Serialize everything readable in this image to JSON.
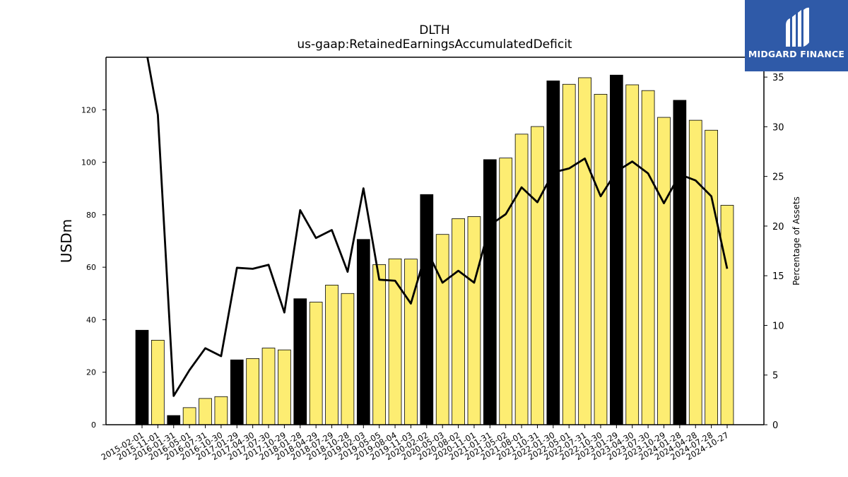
{
  "chart_data": {
    "type": "bar+line",
    "title": "DLTH",
    "subtitle": "us-gaap:RetainedEarningsAccumulatedDeficit",
    "ylabel": "USDm",
    "y2label": "Percentage of Assets",
    "ylim": [
      0,
      140
    ],
    "y2lim": [
      0,
      37
    ],
    "yticks": [
      0,
      20,
      40,
      60,
      80,
      100,
      120
    ],
    "y2ticks": [
      0,
      5,
      10,
      15,
      20,
      25,
      30,
      35
    ],
    "categories": [
      "2015-02-01",
      "2015-11-01",
      "2016-01-31",
      "2016-05-01",
      "2016-07-31",
      "2016-10-30",
      "2017-01-29",
      "2017-04-30",
      "2017-07-30",
      "2017-10-29",
      "2018-01-28",
      "2018-04-29",
      "2018-07-29",
      "2018-10-28",
      "2019-02-03",
      "2019-05-05",
      "2019-08-04",
      "2019-11-03",
      "2020-02-02",
      "2020-05-03",
      "2020-08-02",
      "2020-11-01",
      "2021-01-31",
      "2021-05-02",
      "2021-08-01",
      "2021-10-31",
      "2022-01-30",
      "2022-05-01",
      "2022-07-31",
      "2022-10-30",
      "2023-01-29",
      "2023-04-30",
      "2023-07-30",
      "2023-10-29",
      "2024-01-28",
      "2024-04-28",
      "2024-07-28",
      "2024-10-27"
    ],
    "bar_values": [
      36.0,
      32.2,
      3.5,
      6.5,
      10.0,
      10.7,
      24.7,
      25.2,
      29.2,
      28.5,
      48.0,
      46.7,
      53.2,
      50.0,
      70.6,
      61.0,
      63.2,
      63.1,
      87.7,
      72.5,
      78.5,
      79.3,
      101.0,
      101.6,
      110.7,
      113.6,
      131.0,
      129.7,
      132.2,
      125.9,
      133.2,
      129.5,
      127.3,
      117.1,
      123.6,
      116.0,
      112.2,
      83.6
    ],
    "bar_highlight": [
      true,
      false,
      true,
      false,
      false,
      false,
      true,
      false,
      false,
      false,
      true,
      false,
      false,
      false,
      true,
      false,
      false,
      false,
      true,
      false,
      false,
      false,
      true,
      false,
      false,
      false,
      true,
      false,
      false,
      false,
      true,
      false,
      false,
      false,
      true,
      false,
      false,
      false
    ],
    "line_values": [
      40.0,
      31.2,
      2.9,
      5.5,
      7.7,
      6.9,
      15.8,
      15.7,
      16.1,
      11.3,
      21.6,
      18.8,
      19.6,
      15.4,
      23.8,
      14.6,
      14.5,
      12.2,
      17.6,
      14.3,
      15.5,
      14.3,
      20.1,
      21.2,
      23.9,
      22.4,
      25.4,
      25.8,
      26.8,
      23.0,
      25.5,
      26.5,
      25.3,
      22.3,
      25.2,
      24.6,
      23.0,
      15.7
    ],
    "colors": {
      "bar_highlight": "#000000",
      "bar_normal": "#fded72",
      "line": "#000000"
    }
  },
  "logo": {
    "text": "MIDGARD FINANCE"
  }
}
